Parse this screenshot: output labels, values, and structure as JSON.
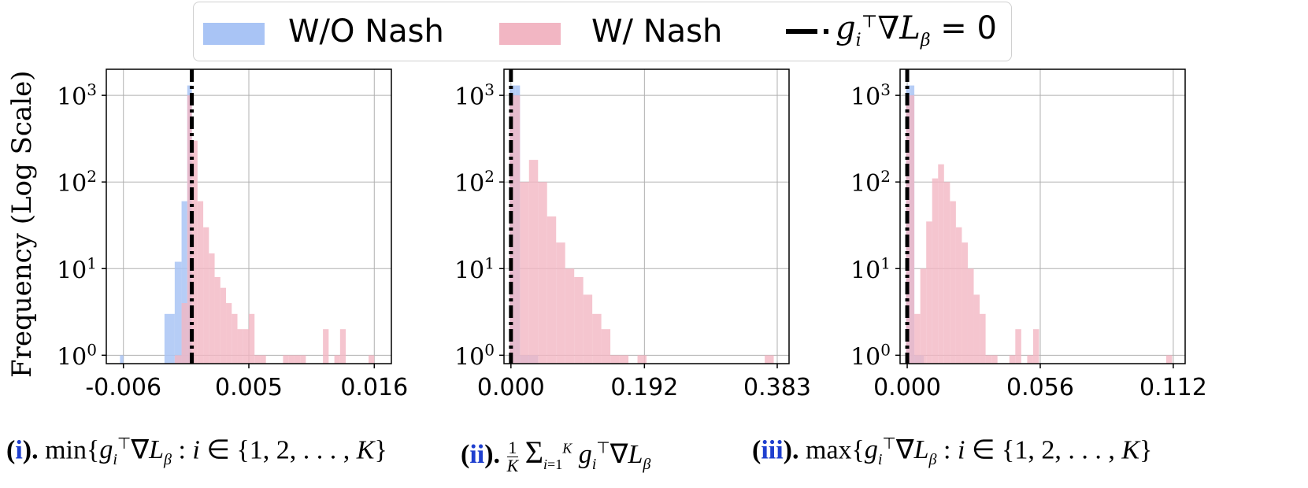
{
  "legend": {
    "items": [
      {
        "label": "W/O Nash",
        "color": "#a9c4f5"
      },
      {
        "label": "W/ Nash",
        "color": "#f2b6c3"
      }
    ],
    "line_label": "g_i^⊤∇L_β = 0"
  },
  "ylabel": "Frequency  (Log Scale)",
  "chart_data": [
    {
      "type": "bar",
      "subtype": "histogram",
      "scale_y": "log",
      "ylim": [
        0.8,
        2000
      ],
      "xlim": [
        -0.0075,
        0.0175
      ],
      "xticks": [
        -0.006,
        0.005,
        0.016
      ],
      "xticklabels": [
        "-0.006",
        "0.005",
        "0.016"
      ],
      "yticklabels": [
        "10^0",
        "10^1",
        "10^2",
        "10^3"
      ],
      "grid": true,
      "vline_x": 0.0,
      "series": [
        {
          "name": "W/O Nash",
          "color": "#a9c4f5",
          "bins": [
            [
              -0.0063,
              -0.006,
              1
            ],
            [
              -0.0024,
              -0.0015,
              3
            ],
            [
              -0.0015,
              -0.0009,
              12
            ],
            [
              -0.0009,
              -0.0004,
              60
            ],
            [
              -0.0004,
              0.0,
              1300
            ]
          ]
        },
        {
          "name": "W/ Nash",
          "color": "#f2b6c3",
          "bins": [
            [
              -0.0015,
              -0.0009,
              1
            ],
            [
              -0.0009,
              -0.0004,
              4
            ],
            [
              -0.0004,
              0.0,
              1000
            ],
            [
              0.0,
              0.0005,
              300
            ],
            [
              0.0005,
              0.001,
              60
            ],
            [
              0.001,
              0.0015,
              30
            ],
            [
              0.0015,
              0.002,
              15
            ],
            [
              0.002,
              0.0025,
              8
            ],
            [
              0.0025,
              0.003,
              6
            ],
            [
              0.003,
              0.0035,
              4
            ],
            [
              0.0035,
              0.004,
              3
            ],
            [
              0.004,
              0.0045,
              2
            ],
            [
              0.0045,
              0.005,
              2
            ],
            [
              0.005,
              0.0055,
              3
            ],
            [
              0.0055,
              0.006,
              1
            ],
            [
              0.006,
              0.0065,
              1
            ],
            [
              0.008,
              0.0085,
              1
            ],
            [
              0.0085,
              0.009,
              1
            ],
            [
              0.009,
              0.0095,
              1
            ],
            [
              0.0095,
              0.01,
              1
            ],
            [
              0.0115,
              0.012,
              2
            ],
            [
              0.0125,
              0.013,
              1
            ],
            [
              0.013,
              0.0135,
              2
            ],
            [
              0.0155,
              0.016,
              1
            ]
          ]
        }
      ]
    },
    {
      "type": "bar",
      "subtype": "histogram",
      "scale_y": "log",
      "ylim": [
        0.8,
        2000
      ],
      "xlim": [
        -0.01,
        0.4
      ],
      "xticks": [
        0.0,
        0.192,
        0.383
      ],
      "xticklabels": [
        "0.000",
        "0.192",
        "0.383"
      ],
      "yticklabels": [
        "10^0",
        "10^1",
        "10^2",
        "10^3"
      ],
      "grid": true,
      "vline_x": 0.0,
      "series": [
        {
          "name": "W/O Nash",
          "color": "#a9c4f5",
          "bins": [
            [
              -0.002,
              0.006,
              1300
            ],
            [
              0.006,
              0.013,
              1300
            ],
            [
              0.013,
              0.026,
              1
            ],
            [
              0.026,
              0.039,
              1
            ]
          ]
        },
        {
          "name": "W/ Nash",
          "color": "#f2b6c3",
          "bins": [
            [
              -0.002,
              0.013,
              1000
            ],
            [
              0.013,
              0.026,
              100
            ],
            [
              0.026,
              0.039,
              180
            ],
            [
              0.039,
              0.052,
              100
            ],
            [
              0.052,
              0.065,
              40
            ],
            [
              0.065,
              0.078,
              20
            ],
            [
              0.078,
              0.091,
              10
            ],
            [
              0.091,
              0.104,
              8
            ],
            [
              0.104,
              0.117,
              5
            ],
            [
              0.117,
              0.13,
              3
            ],
            [
              0.13,
              0.143,
              2
            ],
            [
              0.143,
              0.156,
              1
            ],
            [
              0.156,
              0.169,
              1
            ],
            [
              0.182,
              0.195,
              1
            ],
            [
              0.365,
              0.378,
              1
            ]
          ]
        }
      ]
    },
    {
      "type": "bar",
      "subtype": "histogram",
      "scale_y": "log",
      "ylim": [
        0.8,
        2000
      ],
      "xlim": [
        -0.003,
        0.117
      ],
      "xticks": [
        0.0,
        0.056,
        0.112
      ],
      "xticklabels": [
        "0.000",
        "0.056",
        "0.112"
      ],
      "yticklabels": [
        "10^0",
        "10^1",
        "10^2",
        "10^3"
      ],
      "grid": true,
      "vline_x": 0.0,
      "series": [
        {
          "name": "W/O Nash",
          "color": "#a9c4f5",
          "bins": [
            [
              -0.0005,
              0.0015,
              1300
            ],
            [
              0.0015,
              0.003,
              1300
            ],
            [
              0.003,
              0.007,
              1
            ]
          ]
        },
        {
          "name": "W/ Nash",
          "color": "#f2b6c3",
          "bins": [
            [
              -0.0005,
              0.003,
              1000
            ],
            [
              0.003,
              0.0055,
              3
            ],
            [
              0.0055,
              0.008,
              10
            ],
            [
              0.008,
              0.0105,
              35
            ],
            [
              0.0105,
              0.013,
              110
            ],
            [
              0.013,
              0.0155,
              160
            ],
            [
              0.0155,
              0.018,
              100
            ],
            [
              0.018,
              0.0205,
              60
            ],
            [
              0.0205,
              0.023,
              30
            ],
            [
              0.023,
              0.0255,
              20
            ],
            [
              0.0255,
              0.028,
              10
            ],
            [
              0.028,
              0.0305,
              5
            ],
            [
              0.0305,
              0.033,
              3
            ],
            [
              0.033,
              0.0355,
              1
            ],
            [
              0.0355,
              0.038,
              1
            ],
            [
              0.043,
              0.0455,
              1
            ],
            [
              0.0455,
              0.048,
              2
            ],
            [
              0.0505,
              0.053,
              1
            ],
            [
              0.053,
              0.0555,
              2
            ],
            [
              0.109,
              0.1115,
              1
            ]
          ]
        }
      ]
    }
  ],
  "caption": {
    "parts": [
      {
        "num": "i",
        "text": "min{g_i^⊤∇L_β : i ∈ {1, 2, . . . , K}"
      },
      {
        "num": "ii",
        "text": "(1/K) Σ_{i=1}^{K} g_i^⊤∇L_β"
      },
      {
        "num": "iii",
        "text": "max{g_i^⊤∇L_β : i ∈ {1, 2, . . . , K}"
      }
    ]
  }
}
